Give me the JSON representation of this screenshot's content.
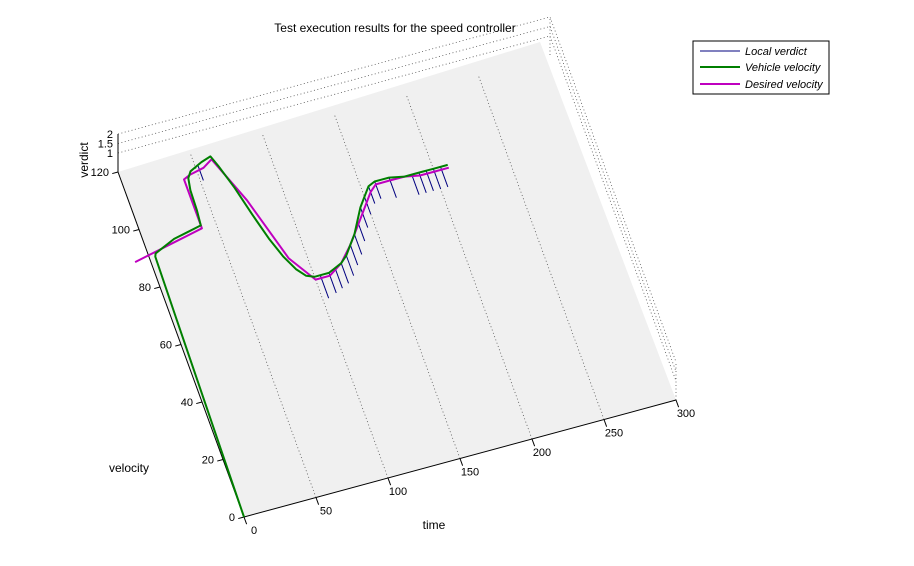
{
  "chart_data": {
    "type": "line",
    "title": "Test execution results for the speed controller",
    "xlabel": "time",
    "ylabel": "velocity",
    "zlabel": "verdict",
    "xlim": [
      0,
      300
    ],
    "ylim": [
      0,
      120
    ],
    "zlim": [
      0,
      2
    ],
    "x_ticks": [
      "0",
      "50",
      "100",
      "150",
      "200",
      "250",
      "300"
    ],
    "y_ticks": [
      "0",
      "20",
      "40",
      "60",
      "80",
      "100",
      "120"
    ],
    "z_ticks": [
      "1",
      "1.5",
      "2"
    ],
    "legend_position": "top-right",
    "grid": true,
    "series": [
      {
        "name": "Vehicle velocity",
        "color": "#007f00",
        "points": [
          [
            0,
            0
          ],
          [
            1,
            22
          ],
          [
            2,
            45
          ],
          [
            3,
            68
          ],
          [
            4,
            90
          ],
          [
            5,
            91
          ],
          [
            10,
            92
          ],
          [
            20,
            94
          ],
          [
            30,
            95
          ],
          [
            40,
            96
          ],
          [
            41,
            101
          ],
          [
            41.5,
            108
          ],
          [
            43,
            112
          ],
          [
            46,
            114
          ],
          [
            55,
            116
          ],
          [
            62,
            117
          ],
          [
            65,
            113
          ],
          [
            70,
            105
          ],
          [
            75,
            95
          ],
          [
            80,
            86
          ],
          [
            85,
            79
          ],
          [
            90,
            74
          ],
          [
            95,
            71
          ],
          [
            100,
            70
          ],
          [
            105,
            70
          ],
          [
            110,
            70
          ],
          [
            115,
            71
          ],
          [
            120,
            72
          ],
          [
            125,
            74
          ],
          [
            130,
            77
          ],
          [
            135,
            80
          ],
          [
            140,
            84
          ],
          [
            145,
            88
          ],
          [
            150,
            91
          ],
          [
            155,
            94
          ],
          [
            160,
            95
          ],
          [
            170,
            95
          ],
          [
            180,
            94
          ],
          [
            190,
            94
          ],
          [
            200,
            94
          ],
          [
            210,
            94
          ]
        ]
      },
      {
        "name": "Desired velocity",
        "color": "#bf00bf",
        "points": [
          [
            -10,
            90
          ],
          [
            0,
            91
          ],
          [
            10,
            92
          ],
          [
            20,
            93
          ],
          [
            30,
            94
          ],
          [
            40,
            95
          ],
          [
            40,
            112
          ],
          [
            45,
            113
          ],
          [
            55,
            114
          ],
          [
            62,
            116
          ],
          [
            75,
            100
          ],
          [
            88,
            78
          ],
          [
            100,
            69
          ],
          [
            110,
            69
          ],
          [
            120,
            72
          ],
          [
            130,
            77
          ],
          [
            140,
            83
          ],
          [
            150,
            89
          ],
          [
            155,
            92
          ],
          [
            160,
            94
          ],
          [
            170,
            94
          ],
          [
            180,
            94
          ],
          [
            190,
            93
          ],
          [
            200,
            93
          ],
          [
            210,
            93
          ]
        ]
      }
    ],
    "verdict_series": {
      "name": "Local verdict",
      "color": "#00007f",
      "drops": [
        {
          "x": 52,
          "v_top": 115,
          "v_bottom": 110
        },
        {
          "x": 104,
          "v_top": 70,
          "v_bottom": 62
        },
        {
          "x": 110,
          "v_top": 70,
          "v_bottom": 63
        },
        {
          "x": 115,
          "v_top": 71,
          "v_bottom": 64
        },
        {
          "x": 120,
          "v_top": 72,
          "v_bottom": 65
        },
        {
          "x": 125,
          "v_top": 74,
          "v_bottom": 67
        },
        {
          "x": 130,
          "v_top": 77,
          "v_bottom": 70
        },
        {
          "x": 135,
          "v_top": 80,
          "v_bottom": 73
        },
        {
          "x": 140,
          "v_top": 84,
          "v_bottom": 77
        },
        {
          "x": 145,
          "v_top": 88,
          "v_bottom": 81
        },
        {
          "x": 150,
          "v_top": 91,
          "v_bottom": 85
        },
        {
          "x": 155,
          "v_top": 94,
          "v_bottom": 88
        },
        {
          "x": 160,
          "v_top": 95,
          "v_bottom": 89
        },
        {
          "x": 170,
          "v_top": 95,
          "v_bottom": 88
        },
        {
          "x": 185,
          "v_top": 94,
          "v_bottom": 87
        },
        {
          "x": 190,
          "v_top": 94,
          "v_bottom": 87
        },
        {
          "x": 195,
          "v_top": 94,
          "v_bottom": 87
        },
        {
          "x": 200,
          "v_top": 94,
          "v_bottom": 87
        },
        {
          "x": 205,
          "v_top": 94,
          "v_bottom": 87
        }
      ]
    }
  }
}
